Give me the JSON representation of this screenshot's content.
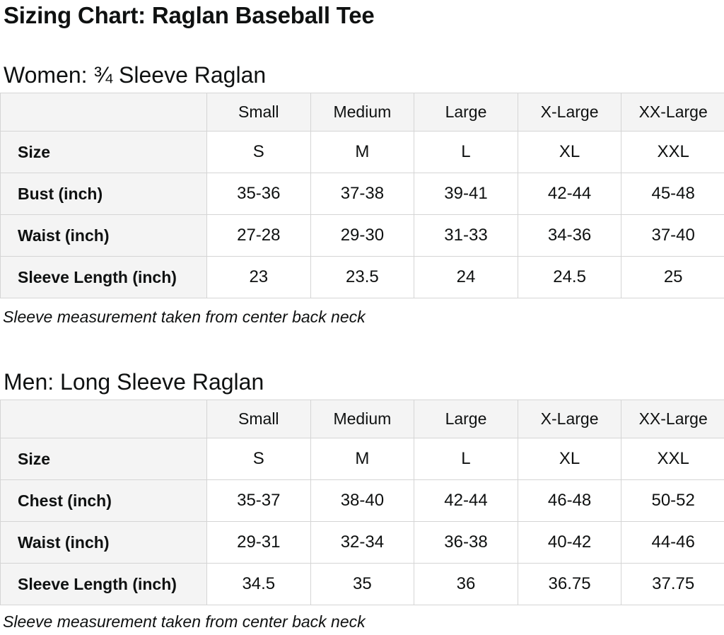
{
  "page": {
    "title": "Sizing Chart: Raglan Baseball Tee"
  },
  "colors": {
    "text": "#0f1111",
    "table_border": "#d5d5d5",
    "header_cell_background": "#f4f4f4",
    "data_cell_background": "#ffffff",
    "page_background": "#ffffff"
  },
  "sections": [
    {
      "heading": "Women: ¾ Sleeve Raglan",
      "note": "Sleeve measurement taken from center back neck",
      "table": {
        "columns": [
          "",
          "Small",
          "Medium",
          "Large",
          "X-Large",
          "XX-Large"
        ],
        "rows": [
          {
            "label": "Size",
            "values": [
              "S",
              "M",
              "L",
              "XL",
              "XXL"
            ]
          },
          {
            "label": "Bust (inch)",
            "values": [
              "35-36",
              "37-38",
              "39-41",
              "42-44",
              "45-48"
            ]
          },
          {
            "label": "Waist (inch)",
            "values": [
              "27-28",
              "29-30",
              "31-33",
              "34-36",
              "37-40"
            ]
          },
          {
            "label": "Sleeve Length (inch)",
            "values": [
              "23",
              "23.5",
              "24",
              "24.5",
              "25"
            ]
          }
        ]
      }
    },
    {
      "heading": "Men: Long Sleeve Raglan",
      "note": "Sleeve measurement taken from center back neck",
      "table": {
        "columns": [
          "",
          "Small",
          "Medium",
          "Large",
          "X-Large",
          "XX-Large"
        ],
        "rows": [
          {
            "label": "Size",
            "values": [
              "S",
              "M",
              "L",
              "XL",
              "XXL"
            ]
          },
          {
            "label": "Chest (inch)",
            "values": [
              "35-37",
              "38-40",
              "42-44",
              "46-48",
              "50-52"
            ]
          },
          {
            "label": "Waist (inch)",
            "values": [
              "29-31",
              "32-34",
              "36-38",
              "40-42",
              "44-46"
            ]
          },
          {
            "label": "Sleeve Length (inch)",
            "values": [
              "34.5",
              "35",
              "36",
              "36.75",
              "37.75"
            ]
          }
        ]
      }
    }
  ]
}
